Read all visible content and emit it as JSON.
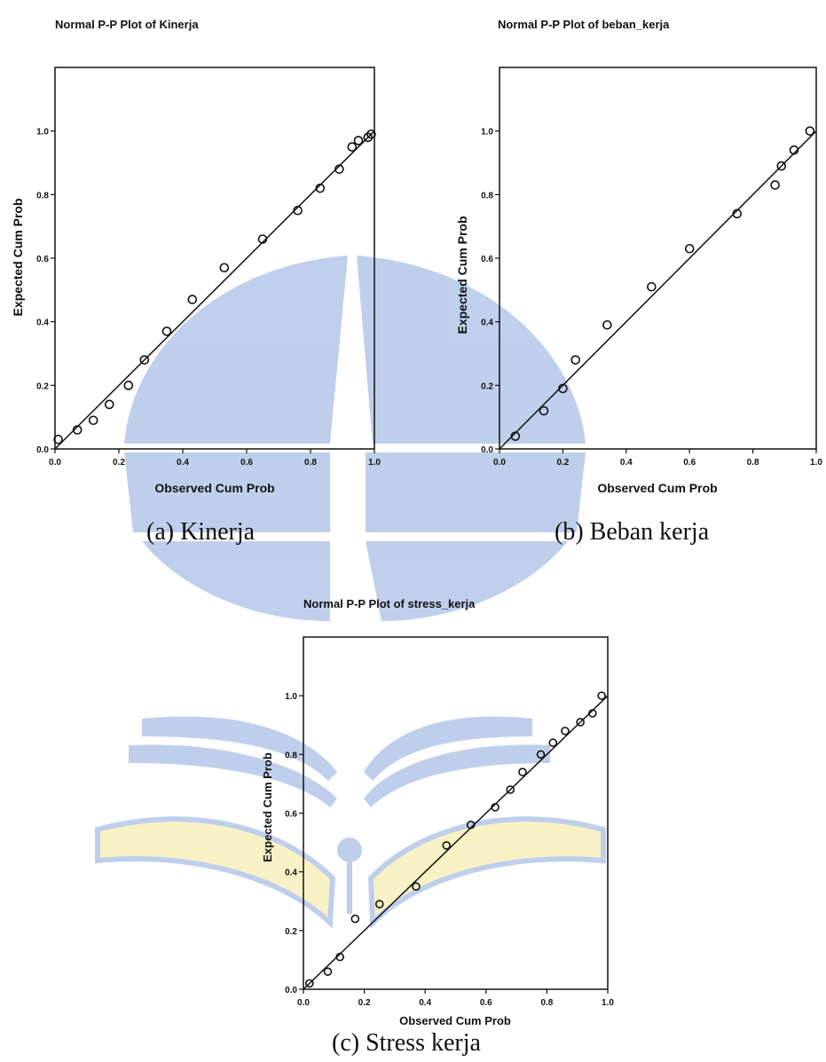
{
  "watermark": {
    "name": "university-logo-watermark",
    "primary_color": "#b5c7e8",
    "secondary_color": "#f7efbd"
  },
  "chart_data": [
    {
      "type": "scatter",
      "title": "Normal P-P Plot of Kinerja",
      "xlabel": "Observed Cum Prob",
      "ylabel": "Expected Cum Prob",
      "xlim": [
        0,
        1
      ],
      "ylim": [
        0,
        1.2
      ],
      "x_ticks": [
        "0.0",
        "0.2",
        "0.4",
        "0.6",
        "0.8",
        "1.0"
      ],
      "y_ticks": [
        "0.0",
        "0.2",
        "0.4",
        "0.6",
        "0.8",
        "1.0"
      ],
      "reference_line": [
        [
          0,
          0
        ],
        [
          1,
          1
        ]
      ],
      "points": [
        [
          0.01,
          0.03
        ],
        [
          0.07,
          0.06
        ],
        [
          0.12,
          0.09
        ],
        [
          0.17,
          0.14
        ],
        [
          0.23,
          0.2
        ],
        [
          0.28,
          0.28
        ],
        [
          0.35,
          0.37
        ],
        [
          0.43,
          0.47
        ],
        [
          0.53,
          0.57
        ],
        [
          0.65,
          0.66
        ],
        [
          0.76,
          0.75
        ],
        [
          0.83,
          0.82
        ],
        [
          0.89,
          0.88
        ],
        [
          0.93,
          0.95
        ],
        [
          0.95,
          0.97
        ],
        [
          0.98,
          0.98
        ],
        [
          0.99,
          0.99
        ]
      ],
      "caption": "(a)  Kinerja"
    },
    {
      "type": "scatter",
      "title": "Normal P-P Plot of beban_kerja",
      "xlabel": "Observed Cum Prob",
      "ylabel": "Expected Cum Prob",
      "xlim": [
        0,
        1
      ],
      "ylim": [
        0,
        1.2
      ],
      "x_ticks": [
        "0.0",
        "0.2",
        "0.4",
        "0.6",
        "0.8",
        "1.0"
      ],
      "y_ticks": [
        "0.0",
        "0.2",
        "0.4",
        "0.6",
        "0.8",
        "1.0"
      ],
      "reference_line": [
        [
          0,
          0
        ],
        [
          1,
          1
        ]
      ],
      "points": [
        [
          0.05,
          0.04
        ],
        [
          0.14,
          0.12
        ],
        [
          0.2,
          0.19
        ],
        [
          0.24,
          0.28
        ],
        [
          0.34,
          0.39
        ],
        [
          0.48,
          0.51
        ],
        [
          0.6,
          0.63
        ],
        [
          0.75,
          0.74
        ],
        [
          0.87,
          0.83
        ],
        [
          0.89,
          0.89
        ],
        [
          0.93,
          0.94
        ],
        [
          0.98,
          1.0
        ]
      ],
      "caption": "(b)  Beban kerja"
    },
    {
      "type": "scatter",
      "title": "Normal P-P Plot of stress_kerja",
      "xlabel": "Observed Cum Prob",
      "ylabel": "Expected Cum Prob",
      "xlim": [
        0,
        1
      ],
      "ylim": [
        0,
        1.2
      ],
      "x_ticks": [
        "0.0",
        "0.2",
        "0.4",
        "0.6",
        "0.8",
        "1.0"
      ],
      "y_ticks": [
        "0.0",
        "0.2",
        "0.4",
        "0.6",
        "0.8",
        "1.0"
      ],
      "reference_line": [
        [
          0,
          0
        ],
        [
          1,
          1
        ]
      ],
      "points": [
        [
          0.02,
          0.02
        ],
        [
          0.08,
          0.06
        ],
        [
          0.12,
          0.11
        ],
        [
          0.17,
          0.24
        ],
        [
          0.25,
          0.29
        ],
        [
          0.37,
          0.35
        ],
        [
          0.47,
          0.49
        ],
        [
          0.55,
          0.56
        ],
        [
          0.63,
          0.62
        ],
        [
          0.68,
          0.68
        ],
        [
          0.72,
          0.74
        ],
        [
          0.78,
          0.8
        ],
        [
          0.82,
          0.84
        ],
        [
          0.86,
          0.88
        ],
        [
          0.91,
          0.91
        ],
        [
          0.95,
          0.94
        ],
        [
          0.98,
          1.0
        ]
      ],
      "caption": "(c)  Stress kerja"
    }
  ]
}
